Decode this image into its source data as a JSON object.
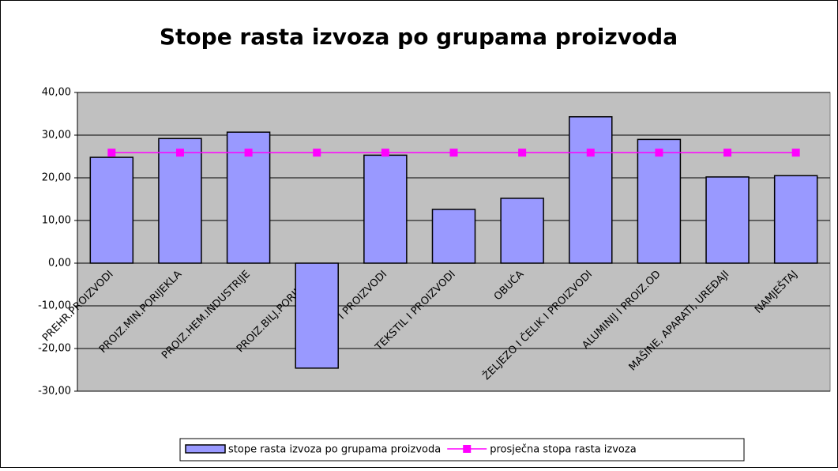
{
  "chart_data": {
    "type": "bar",
    "title": "Stope rasta izvoza po grupama proizvoda",
    "categories": [
      "PREHR.PROIZVODI",
      "PROIZ.MIN.PORIJEKLA",
      "PROIZ.HEM.INDUSTRIJE",
      "PROIZ.BILJ.PORIJEKLA",
      "DRVO I PROIZVODI",
      "TEKSTIL I PROIZVODI",
      "OBUĆA",
      "ŽELJEZO I ČELIK I PROIZVODI",
      "ALUMINIJ I PROIZ.OD",
      "MAŠINE, APARATI, UREĐAJI",
      "NAMJEŠTAJ"
    ],
    "series": [
      {
        "name": "stope rasta izvoza po grupama proizvoda",
        "color": "#9999ff",
        "type": "bar",
        "values": [
          24.8,
          29.2,
          30.7,
          -24.6,
          25.3,
          12.6,
          15.2,
          34.3,
          29.0,
          20.2,
          20.5
        ]
      },
      {
        "name": "prosječna stopa rasta izvoza",
        "color": "#ff00ff",
        "type": "line",
        "values": [
          25.9,
          25.9,
          25.9,
          25.9,
          25.9,
          25.9,
          25.9,
          25.9,
          25.9,
          25.9,
          25.9
        ]
      }
    ],
    "ylim": [
      -30,
      40
    ],
    "yticks": [
      {
        "value": -30,
        "label": "-30,00"
      },
      {
        "value": -20,
        "label": "-20,00"
      },
      {
        "value": -10,
        "label": "-10,00"
      },
      {
        "value": 0,
        "label": "0,00"
      },
      {
        "value": 10,
        "label": "10,00"
      },
      {
        "value": 20,
        "label": "20,00"
      },
      {
        "value": 30,
        "label": "30,00"
      },
      {
        "value": 40,
        "label": "40,00"
      }
    ],
    "grid": true,
    "legend": "bottom"
  }
}
